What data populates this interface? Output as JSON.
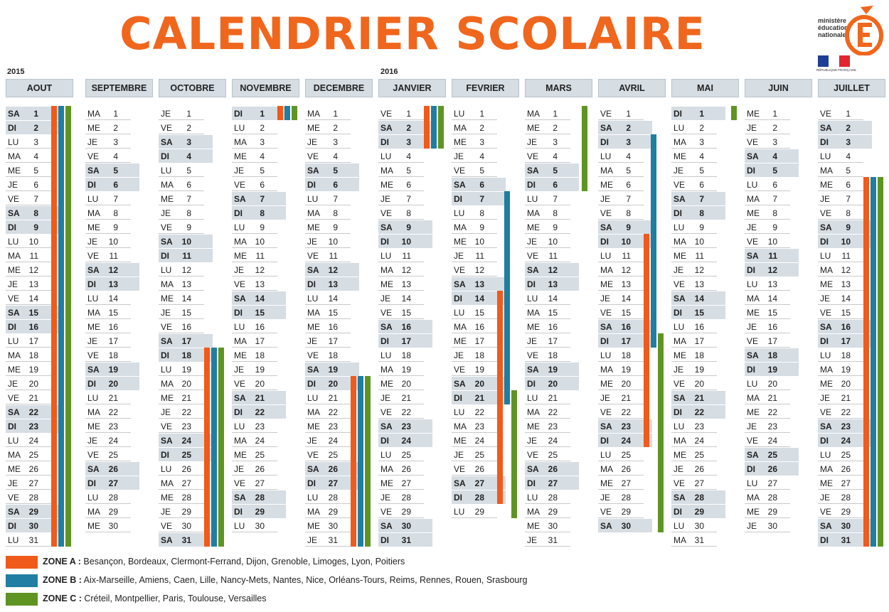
{
  "title": "CALENDRIER SCOLAIRE",
  "logo": {
    "text": [
      "ministère",
      "éducation",
      "nationale"
    ],
    "republic": "RÉPUBLIQUE FRANÇAISE"
  },
  "colors": {
    "title": "#f0661d",
    "zone_a": "#f05a1a",
    "zone_b": "#1f7ea1",
    "zone_c": "#5f9423",
    "header": "#d6dde3"
  },
  "years": [
    "2015",
    "2016"
  ],
  "months": [
    {
      "name": "AOUT",
      "start": 5,
      "days": 31
    },
    {
      "name": "SEPTEMBRE",
      "start": 1,
      "days": 30
    },
    {
      "name": "OCTOBRE",
      "start": 3,
      "days": 31
    },
    {
      "name": "NOVEMBRE",
      "start": 6,
      "days": 30
    },
    {
      "name": "DECEMBRE",
      "start": 1,
      "days": 31
    },
    {
      "name": "JANVIER",
      "start": 4,
      "days": 31
    },
    {
      "name": "FEVRIER",
      "start": 0,
      "days": 29
    },
    {
      "name": "MARS",
      "start": 1,
      "days": 31
    },
    {
      "name": "AVRIL",
      "start": 4,
      "days": 30
    },
    {
      "name": "MAI",
      "start": 6,
      "days": 31
    },
    {
      "name": "JUIN",
      "start": 2,
      "days": 30
    },
    {
      "name": "JUILLET",
      "start": 4,
      "days": 31
    }
  ],
  "weekdays": [
    "LU",
    "MA",
    "ME",
    "JE",
    "VE",
    "SA",
    "DI"
  ],
  "holidays": [
    {
      "month": 0,
      "zone": "a",
      "from": 1,
      "to": 31
    },
    {
      "month": 0,
      "zone": "b",
      "from": 1,
      "to": 31
    },
    {
      "month": 0,
      "zone": "c",
      "from": 1,
      "to": 31
    },
    {
      "month": 2,
      "zone": "a",
      "from": 18,
      "to": 31
    },
    {
      "month": 2,
      "zone": "b",
      "from": 18,
      "to": 31
    },
    {
      "month": 2,
      "zone": "c",
      "from": 18,
      "to": 31
    },
    {
      "month": 3,
      "zone": "a",
      "from": 1,
      "to": 1
    },
    {
      "month": 3,
      "zone": "b",
      "from": 1,
      "to": 1
    },
    {
      "month": 3,
      "zone": "c",
      "from": 1,
      "to": 1
    },
    {
      "month": 4,
      "zone": "a",
      "from": 20,
      "to": 31
    },
    {
      "month": 4,
      "zone": "b",
      "from": 20,
      "to": 31
    },
    {
      "month": 4,
      "zone": "c",
      "from": 20,
      "to": 31
    },
    {
      "month": 5,
      "zone": "a",
      "from": 1,
      "to": 3
    },
    {
      "month": 5,
      "zone": "b",
      "from": 1,
      "to": 3
    },
    {
      "month": 5,
      "zone": "c",
      "from": 1,
      "to": 3
    },
    {
      "month": 6,
      "zone": "b",
      "from": 7,
      "to": 21
    },
    {
      "month": 6,
      "zone": "a",
      "from": 14,
      "to": 28
    },
    {
      "month": 6,
      "zone": "c",
      "from": 21,
      "to": 29
    },
    {
      "month": 7,
      "zone": "c",
      "from": 1,
      "to": 6
    },
    {
      "month": 8,
      "zone": "b",
      "from": 3,
      "to": 17
    },
    {
      "month": 8,
      "zone": "a",
      "from": 10,
      "to": 24
    },
    {
      "month": 8,
      "zone": "c",
      "from": 17,
      "to": 30
    },
    {
      "month": 9,
      "zone": "c",
      "from": 1,
      "to": 1
    },
    {
      "month": 11,
      "zone": "a",
      "from": 6,
      "to": 31
    },
    {
      "month": 11,
      "zone": "b",
      "from": 6,
      "to": 31
    },
    {
      "month": 11,
      "zone": "c",
      "from": 6,
      "to": 31
    }
  ],
  "legend": [
    {
      "zone": "a",
      "label": "ZONE A :",
      "text": " Besançon, Bordeaux, Clermont-Ferrand, Dijon, Grenoble, Limoges, Lyon, Poitiers"
    },
    {
      "zone": "b",
      "label": "ZONE B :",
      "text": " Aix-Marseille, Amiens, Caen, Lille, Nancy-Mets, Nantes, Nice, Orléans-Tours, Reims, Rennes, Rouen, Srasbourg"
    },
    {
      "zone": "c",
      "label": "ZONE C :",
      "text": " Créteil, Montpellier, Paris, Toulouse, Versailles"
    }
  ]
}
